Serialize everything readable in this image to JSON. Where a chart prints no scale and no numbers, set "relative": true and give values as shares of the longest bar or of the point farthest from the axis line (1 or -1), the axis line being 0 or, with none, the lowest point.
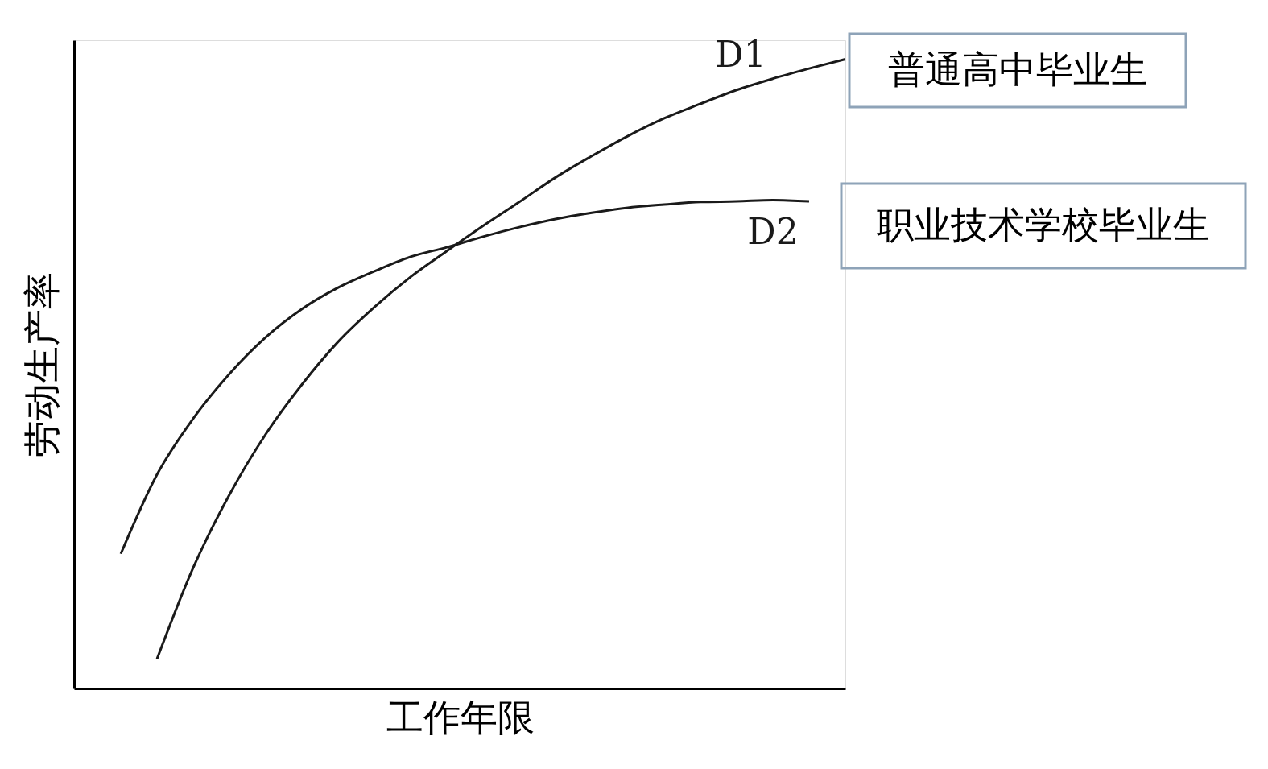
{
  "chart_data": {
    "type": "line",
    "relative": true,
    "xlabel": "工作年限",
    "ylabel": "劳动生产率",
    "grid": false,
    "legend": false,
    "tick_labels": false,
    "categories": [
      null,
      null,
      null,
      null,
      null,
      null,
      null,
      null,
      null,
      null,
      null,
      null,
      null,
      null,
      null,
      null,
      null,
      null,
      null,
      null,
      null
    ],
    "series": [
      {
        "name": "D1",
        "color": "#1a1a1a",
        "values": [
          null,
          0.047,
          0.192,
          0.308,
          0.404,
          0.483,
          0.551,
          0.606,
          0.654,
          0.695,
          0.735,
          0.773,
          0.812,
          0.846,
          0.878,
          0.906,
          0.929,
          0.951,
          0.969,
          0.985,
          1
        ]
      },
      {
        "name": "D2",
        "color": "#1a1a1a",
        "values": [
          0.214,
          0.34,
          0.429,
          0.5,
          0.558,
          0.603,
          0.637,
          0.663,
          0.686,
          0.701,
          0.718,
          0.733,
          0.746,
          0.756,
          0.764,
          0.769,
          0.773,
          0.774,
          0.776,
          0.774,
          null
        ]
      }
    ],
    "annotations": [
      "普通高中毕业生",
      "职业技术学校毕业生"
    ]
  }
}
